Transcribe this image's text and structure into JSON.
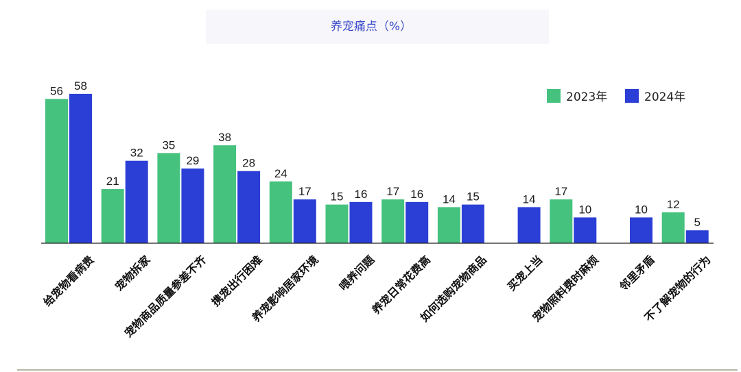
{
  "chart_data": {
    "type": "bar",
    "title": "养宠痛点（%）",
    "categories": [
      "给宠物看病贵",
      "宠物拆家",
      "宠物商品质量参差不齐",
      "携宠出行困难",
      "养宠影响居家环境",
      "喂养问题",
      "养宠日常花费高",
      "如何选购宠物商品",
      "买宠上当",
      "宠物照料费时麻烦",
      "邻里矛盾",
      "不了解宠物的行为"
    ],
    "series": [
      {
        "name": "2023年",
        "color": "#45c27e",
        "values": [
          56,
          21,
          35,
          38,
          24,
          15,
          17,
          14,
          null,
          17,
          null,
          12
        ]
      },
      {
        "name": "2024年",
        "color": "#2b3fd6",
        "values": [
          58,
          32,
          29,
          28,
          17,
          16,
          16,
          15,
          14,
          10,
          10,
          5
        ]
      }
    ],
    "ylim": [
      0,
      60
    ],
    "grid": false,
    "legend": "top-right",
    "title_color": "#3a49c9"
  }
}
